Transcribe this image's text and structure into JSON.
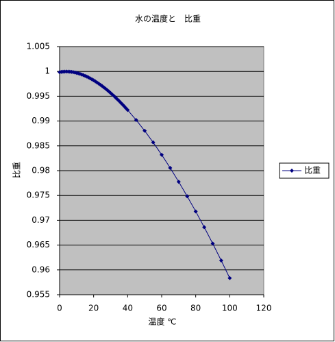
{
  "chart_data": {
    "type": "line",
    "title": "水の温度と　比重",
    "x_label": "温度 ℃",
    "y_label": "比重",
    "x": [
      0,
      1,
      2,
      3,
      4,
      5,
      6,
      7,
      8,
      9,
      10,
      11,
      12,
      13,
      14,
      15,
      16,
      17,
      18,
      19,
      20,
      21,
      22,
      23,
      24,
      25,
      26,
      27,
      28,
      29,
      30,
      31,
      32,
      33,
      34,
      35,
      36,
      37,
      38,
      39,
      40,
      45,
      50,
      55,
      60,
      65,
      70,
      75,
      80,
      85,
      90,
      95,
      100
    ],
    "series": [
      {
        "name": "比重",
        "color": "#000080",
        "values": [
          0.99984,
          0.9999,
          0.99994,
          0.99996,
          0.99997,
          0.99996,
          0.99994,
          0.9999,
          0.99985,
          0.99978,
          0.9997,
          0.99961,
          0.9995,
          0.99938,
          0.99925,
          0.9991,
          0.99895,
          0.99878,
          0.9986,
          0.99841,
          0.99821,
          0.99799,
          0.99777,
          0.99754,
          0.9973,
          0.99705,
          0.99679,
          0.99652,
          0.99624,
          0.99595,
          0.99565,
          0.99534,
          0.99503,
          0.9947,
          0.99437,
          0.99403,
          0.99368,
          0.99333,
          0.99297,
          0.99259,
          0.99222,
          0.99021,
          0.98804,
          0.98569,
          0.9832,
          0.98055,
          0.97776,
          0.97484,
          0.97179,
          0.96861,
          0.96531,
          0.96189,
          0.95835
        ]
      }
    ],
    "xlim": [
      0,
      120
    ],
    "xticks": [
      0,
      20,
      40,
      60,
      80,
      100,
      120
    ],
    "ylim": [
      0.955,
      1.005
    ],
    "yticks": [
      0.955,
      0.96,
      0.965,
      0.97,
      0.975,
      0.98,
      0.985,
      0.99,
      0.995,
      1,
      1.005
    ],
    "grid": true,
    "legend": "right",
    "plot_background": "#c0c0c0"
  }
}
